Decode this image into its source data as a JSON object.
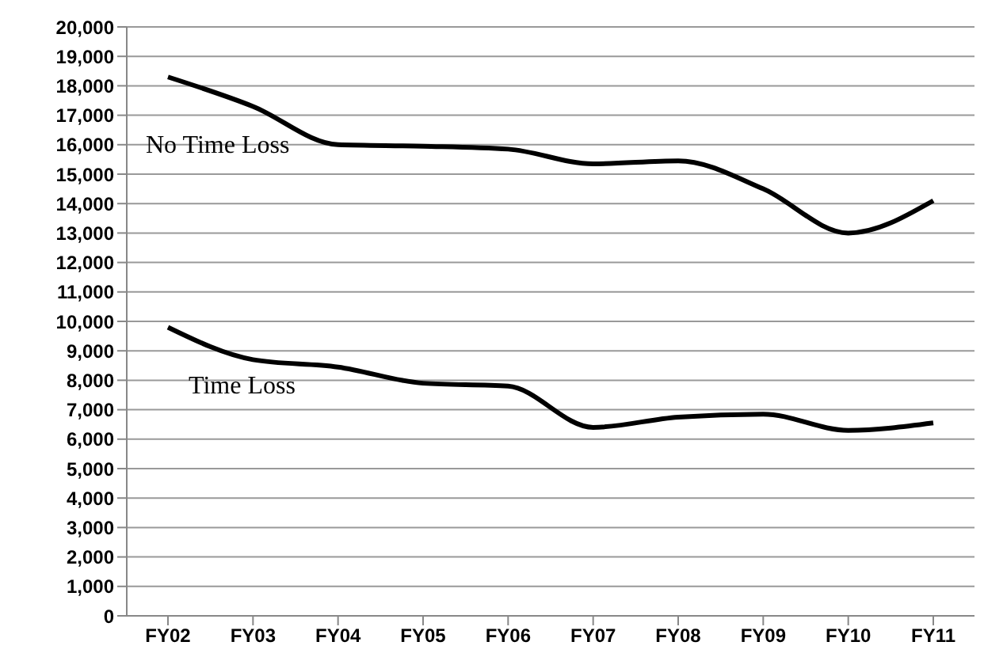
{
  "chart_data": {
    "type": "line",
    "categories": [
      "FY02",
      "FY03",
      "FY04",
      "FY05",
      "FY06",
      "FY07",
      "FY08",
      "FY09",
      "FY10",
      "FY11"
    ],
    "series": [
      {
        "name": "No Time Loss",
        "color": "#000000",
        "values": [
          18300,
          17300,
          16000,
          15950,
          15850,
          15350,
          15450,
          14500,
          13000,
          14100
        ]
      },
      {
        "name": "Time Loss",
        "color": "#000000",
        "values": [
          9800,
          8700,
          8450,
          7900,
          7800,
          6400,
          6750,
          6850,
          6300,
          6550
        ]
      }
    ],
    "ylim": [
      0,
      20000
    ],
    "yticks": [
      0,
      {
        "value": 1000,
        "label": "1,000"
      },
      {
        "value": 2000,
        "label": "2,000"
      },
      {
        "value": 3000,
        "label": "3,000"
      },
      {
        "value": 4000,
        "label": "4,000"
      },
      {
        "value": 5000,
        "label": "5,000"
      },
      {
        "value": 6000,
        "label": "6,000"
      },
      {
        "value": 7000,
        "label": "7,000"
      },
      {
        "value": 8000,
        "label": "8,000"
      },
      {
        "value": 9000,
        "label": "9,000"
      },
      {
        "value": 10000,
        "label": "10,000"
      },
      {
        "value": 11000,
        "label": "11,000"
      },
      {
        "value": 12000,
        "label": "12,000"
      },
      {
        "value": 13000,
        "label": "13,000"
      },
      {
        "value": 14000,
        "label": "14,000"
      },
      {
        "value": 15000,
        "label": "15,000"
      },
      {
        "value": 16000,
        "label": "16,000"
      },
      {
        "value": 17000,
        "label": "17,000"
      },
      {
        "value": 18000,
        "label": "18,000"
      },
      {
        "value": 19000,
        "label": "19,000"
      },
      {
        "value": 20000,
        "label": "20,000"
      }
    ],
    "grid": "y",
    "legend": false,
    "marker": "none",
    "line_style": "solid"
  }
}
